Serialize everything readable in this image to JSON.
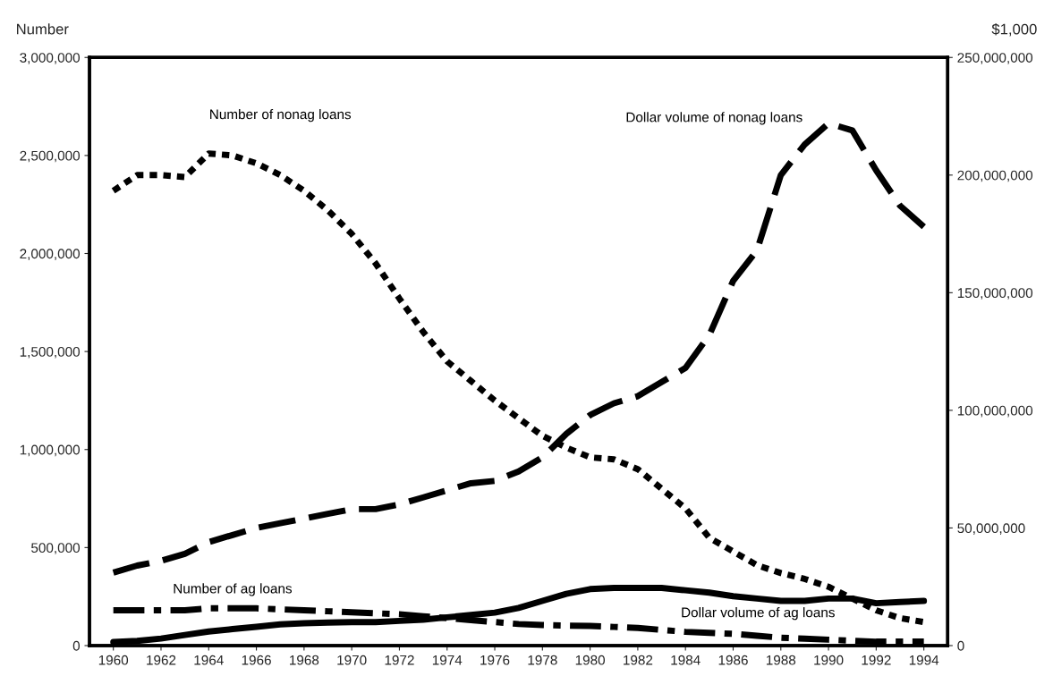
{
  "chart_data": {
    "type": "line",
    "ylabel": "Number",
    "y2label": "$1,000",
    "x": [
      1960,
      1961,
      1962,
      1963,
      1964,
      1965,
      1966,
      1967,
      1968,
      1969,
      1970,
      1971,
      1972,
      1973,
      1974,
      1975,
      1976,
      1977,
      1978,
      1979,
      1980,
      1981,
      1982,
      1983,
      1984,
      1985,
      1986,
      1987,
      1988,
      1989,
      1990,
      1991,
      1992,
      1993,
      1994
    ],
    "series": [
      {
        "name": "Number of nonag loans",
        "color": "#000000",
        "line_style": "dotted",
        "axis": "y",
        "values": [
          2320000,
          2400000,
          2400000,
          2390000,
          2510000,
          2500000,
          2460000,
          2400000,
          2320000,
          2220000,
          2100000,
          1950000,
          1770000,
          1600000,
          1450000,
          1350000,
          1250000,
          1160000,
          1070000,
          1010000,
          960000,
          950000,
          900000,
          800000,
          700000,
          550000,
          480000,
          410000,
          370000,
          340000,
          300000,
          240000,
          180000,
          140000,
          120000
        ]
      },
      {
        "name": "Dollar volume of nonag loans",
        "color": "#000000",
        "line_style": "dashed",
        "axis": "y2",
        "values": [
          31000000,
          34000000,
          36000000,
          39000000,
          44000000,
          47000000,
          50000000,
          52000000,
          54000000,
          56000000,
          58000000,
          58000000,
          60000000,
          63000000,
          66000000,
          69000000,
          70000000,
          74000000,
          80000000,
          90000000,
          98000000,
          103000000,
          106000000,
          112000000,
          118000000,
          132000000,
          155000000,
          168000000,
          200000000,
          213000000,
          222000000,
          219000000,
          202000000,
          187000000,
          178000000
        ]
      },
      {
        "name": "Number of ag loans",
        "color": "#000000",
        "line_style": "dashdot",
        "axis": "y",
        "values": [
          180000,
          180000,
          180000,
          180000,
          190000,
          190000,
          190000,
          185000,
          180000,
          175000,
          170000,
          165000,
          160000,
          150000,
          140000,
          130000,
          120000,
          110000,
          105000,
          102000,
          100000,
          95000,
          90000,
          80000,
          70000,
          65000,
          60000,
          50000,
          40000,
          35000,
          30000,
          25000,
          20000,
          20000,
          20000
        ]
      },
      {
        "name": "Dollar volume of ag loans",
        "color": "#000000",
        "line_style": "solid",
        "axis": "y2",
        "values": [
          1500000,
          2000000,
          3000000,
          4500000,
          6000000,
          7000000,
          8000000,
          9000000,
          9500000,
          9800000,
          10000000,
          10000000,
          10500000,
          11000000,
          12000000,
          13000000,
          14000000,
          16000000,
          19000000,
          22000000,
          24000000,
          24500000,
          24500000,
          24500000,
          23500000,
          22500000,
          21000000,
          20000000,
          19000000,
          19000000,
          20000000,
          20000000,
          18000000,
          18500000,
          19000000
        ]
      }
    ],
    "xlim": [
      1959,
      1995
    ],
    "xticks": [
      1960,
      1962,
      1964,
      1966,
      1968,
      1970,
      1972,
      1974,
      1976,
      1978,
      1980,
      1982,
      1984,
      1986,
      1988,
      1990,
      1992,
      1994
    ],
    "ylim": [
      0,
      3000000
    ],
    "yticks": [
      {
        "value": 0,
        "label": "0"
      },
      {
        "value": 500000,
        "label": "500,000"
      },
      {
        "value": 1000000,
        "label": "1,000,000"
      },
      {
        "value": 1500000,
        "label": "1,500,000"
      },
      {
        "value": 2000000,
        "label": "2,000,000"
      },
      {
        "value": 2500000,
        "label": "2,500,000"
      },
      {
        "value": 3000000,
        "label": "3,000,000"
      }
    ],
    "y2lim": [
      0,
      250000000
    ],
    "y2ticks": [
      {
        "value": 0,
        "label": "0"
      },
      {
        "value": 50000000,
        "label": "50,000,000"
      },
      {
        "value": 100000000,
        "label": "100,000,000"
      },
      {
        "value": 150000000,
        "label": "150,000,000"
      },
      {
        "value": 200000000,
        "label": "200,000,000"
      },
      {
        "value": 250000000,
        "label": "250,000,000"
      }
    ],
    "grid": false,
    "legend": false
  }
}
